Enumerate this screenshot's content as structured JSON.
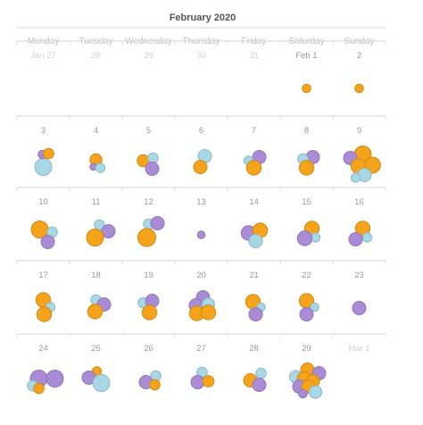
{
  "chart_data": {
    "type": "bubble-calendar",
    "title": "February 2020",
    "weekdays": [
      "Monday",
      "Tuesday",
      "Wednesday",
      "Thursday",
      "Friday",
      "Saturday",
      "Sunday"
    ],
    "colors": {
      "orange": "#F5A31A",
      "purple": "#A98BD6",
      "blue": "#A8D8E6"
    },
    "weeks": [
      [
        {
          "label": "Jan 27",
          "in_month": false,
          "bubbles": []
        },
        {
          "label": "28",
          "in_month": false,
          "bubbles": []
        },
        {
          "label": "29",
          "in_month": false,
          "bubbles": []
        },
        {
          "label": "30",
          "in_month": false,
          "bubbles": []
        },
        {
          "label": "31",
          "in_month": false,
          "bubbles": []
        },
        {
          "label": "Feb 1",
          "in_month": true,
          "bubbles": [
            {
              "color": "orange",
              "size": 1,
              "dx": 0,
              "dy": 0
            }
          ]
        },
        {
          "label": "2",
          "in_month": true,
          "bubbles": [
            {
              "color": "orange",
              "size": 1,
              "dx": 0,
              "dy": 0
            }
          ]
        }
      ],
      [
        {
          "label": "3",
          "in_month": true,
          "bubbles": [
            {
              "color": "blue",
              "size": 4,
              "dx": 0,
              "dy": 4
            },
            {
              "color": "purple",
              "size": 1,
              "dx": -1,
              "dy": -10
            },
            {
              "color": "orange",
              "size": 1.5,
              "dx": 6,
              "dy": -11
            }
          ]
        },
        {
          "label": "4",
          "in_month": true,
          "bubbles": [
            {
              "color": "orange",
              "size": 2,
              "dx": 0,
              "dy": -4
            },
            {
              "color": "purple",
              "size": 0.6,
              "dx": -3,
              "dy": 4
            },
            {
              "color": "blue",
              "size": 1.2,
              "dx": 5,
              "dy": 5
            }
          ]
        },
        {
          "label": "5",
          "in_month": true,
          "bubbles": [
            {
              "color": "orange",
              "size": 2,
              "dx": -6,
              "dy": -3
            },
            {
              "color": "blue",
              "size": 1.5,
              "dx": 5,
              "dy": -6
            },
            {
              "color": "purple",
              "size": 2.5,
              "dx": 4,
              "dy": 6
            }
          ]
        },
        {
          "label": "6",
          "in_month": true,
          "bubbles": [
            {
              "color": "blue",
              "size": 2.5,
              "dx": 4,
              "dy": -8
            },
            {
              "color": "orange",
              "size": 2.5,
              "dx": -1,
              "dy": 4
            }
          ]
        },
        {
          "label": "7",
          "in_month": true,
          "bubbles": [
            {
              "color": "purple",
              "size": 2.5,
              "dx": 6,
              "dy": -7
            },
            {
              "color": "blue",
              "size": 1.2,
              "dx": -6,
              "dy": -3
            },
            {
              "color": "orange",
              "size": 3,
              "dx": 0,
              "dy": 5
            }
          ]
        },
        {
          "label": "8",
          "in_month": true,
          "bubbles": [
            {
              "color": "purple",
              "size": 2.5,
              "dx": 7,
              "dy": -7
            },
            {
              "color": "blue",
              "size": 1.5,
              "dx": -4,
              "dy": -5
            },
            {
              "color": "orange",
              "size": 3,
              "dx": 0,
              "dy": 5
            }
          ]
        },
        {
          "label": "9",
          "in_month": true,
          "bubbles": [
            {
              "color": "orange",
              "size": 4,
              "dx": 4,
              "dy": -10
            },
            {
              "color": "purple",
              "size": 2.5,
              "dx": -10,
              "dy": -6
            },
            {
              "color": "orange",
              "size": 3.5,
              "dx": 15,
              "dy": 2
            },
            {
              "color": "orange",
              "size": 3,
              "dx": -1,
              "dy": 3
            },
            {
              "color": "blue",
              "size": 2.5,
              "dx": 6,
              "dy": 13
            },
            {
              "color": "blue",
              "size": 1.2,
              "dx": -4,
              "dy": 16
            }
          ]
        }
      ],
      [
        {
          "label": "10",
          "in_month": true,
          "bubbles": [
            {
              "color": "orange",
              "size": 4,
              "dx": -4,
              "dy": -6
            },
            {
              "color": "blue",
              "size": 1.5,
              "dx": 10,
              "dy": -3
            },
            {
              "color": "purple",
              "size": 2.5,
              "dx": 5,
              "dy": 8
            }
          ]
        },
        {
          "label": "11",
          "in_month": true,
          "bubbles": [
            {
              "color": "blue",
              "size": 1.5,
              "dx": 4,
              "dy": -11
            },
            {
              "color": "purple",
              "size": 2.5,
              "dx": 14,
              "dy": -4
            },
            {
              "color": "orange",
              "size": 4,
              "dx": -1,
              "dy": 3
            }
          ]
        },
        {
          "label": "12",
          "in_month": true,
          "bubbles": [
            {
              "color": "blue",
              "size": 1.5,
              "dx": 0,
              "dy": -12
            },
            {
              "color": "purple",
              "size": 2.5,
              "dx": 10,
              "dy": -13
            },
            {
              "color": "orange",
              "size": 4.5,
              "dx": -2,
              "dy": 3
            }
          ]
        },
        {
          "label": "13",
          "in_month": true,
          "bubbles": [
            {
              "color": "purple",
              "size": 0.8,
              "dx": 0,
              "dy": 0
            }
          ]
        },
        {
          "label": "14",
          "in_month": true,
          "bubbles": [
            {
              "color": "purple",
              "size": 3,
              "dx": -6,
              "dy": -2
            },
            {
              "color": "orange",
              "size": 3,
              "dx": 7,
              "dy": -5
            },
            {
              "color": "blue",
              "size": 2.5,
              "dx": 2,
              "dy": 7
            }
          ]
        },
        {
          "label": "15",
          "in_month": true,
          "bubbles": [
            {
              "color": "orange",
              "size": 3,
              "dx": 6,
              "dy": -7
            },
            {
              "color": "blue",
              "size": 1.2,
              "dx": 10,
              "dy": 3
            },
            {
              "color": "purple",
              "size": 3,
              "dx": -2,
              "dy": 4
            }
          ]
        },
        {
          "label": "16",
          "in_month": true,
          "bubbles": [
            {
              "color": "orange",
              "size": 3,
              "dx": 4,
              "dy": -7
            },
            {
              "color": "blue",
              "size": 1.2,
              "dx": 9,
              "dy": 3
            },
            {
              "color": "purple",
              "size": 2.5,
              "dx": -4,
              "dy": 5
            }
          ]
        }
      ],
      [
        {
          "label": "17",
          "in_month": true,
          "bubbles": [
            {
              "color": "orange",
              "size": 3,
              "dx": 0,
              "dy": -9
            },
            {
              "color": "blue",
              "size": 1.2,
              "dx": 8,
              "dy": -1
            },
            {
              "color": "orange",
              "size": 3,
              "dx": 1,
              "dy": 7
            }
          ]
        },
        {
          "label": "18",
          "in_month": true,
          "bubbles": [
            {
              "color": "blue",
              "size": 1.5,
              "dx": 0,
              "dy": -9
            },
            {
              "color": "purple",
              "size": 2.5,
              "dx": 9,
              "dy": -4
            },
            {
              "color": "orange",
              "size": 3,
              "dx": -1,
              "dy": 4
            }
          ]
        },
        {
          "label": "19",
          "in_month": true,
          "bubbles": [
            {
              "color": "blue",
              "size": 1.5,
              "dx": -6,
              "dy": -6
            },
            {
              "color": "purple",
              "size": 2.5,
              "dx": 4,
              "dy": -8
            },
            {
              "color": "orange",
              "size": 3,
              "dx": 1,
              "dy": 5
            }
          ]
        },
        {
          "label": "20",
          "in_month": true,
          "bubbles": [
            {
              "color": "purple",
              "size": 2.5,
              "dx": 2,
              "dy": -12
            },
            {
              "color": "purple",
              "size": 2.5,
              "dx": -6,
              "dy": -3
            },
            {
              "color": "blue",
              "size": 2.2,
              "dx": 8,
              "dy": -4
            },
            {
              "color": "orange",
              "size": 3,
              "dx": -5,
              "dy": 6
            },
            {
              "color": "orange",
              "size": 3,
              "dx": 8,
              "dy": 5
            }
          ]
        },
        {
          "label": "21",
          "in_month": true,
          "bubbles": [
            {
              "color": "orange",
              "size": 3,
              "dx": -1,
              "dy": -7
            },
            {
              "color": "blue",
              "size": 1,
              "dx": 8,
              "dy": -1
            },
            {
              "color": "purple",
              "size": 2.5,
              "dx": 2,
              "dy": 7
            }
          ]
        },
        {
          "label": "22",
          "in_month": true,
          "bubbles": [
            {
              "color": "orange",
              "size": 3,
              "dx": 0,
              "dy": -8
            },
            {
              "color": "blue",
              "size": 1,
              "dx": 9,
              "dy": -1
            },
            {
              "color": "purple",
              "size": 2.5,
              "dx": 0,
              "dy": 7
            }
          ]
        },
        {
          "label": "23",
          "in_month": true,
          "bubbles": [
            {
              "color": "purple",
              "size": 2.5,
              "dx": 0,
              "dy": 0
            }
          ]
        }
      ],
      [
        {
          "label": "24",
          "in_month": true,
          "bubbles": [
            {
              "color": "purple",
              "size": 4,
              "dx": -5,
              "dy": -3
            },
            {
              "color": "purple",
              "size": 4,
              "dx": 13,
              "dy": -3
            },
            {
              "color": "blue",
              "size": 1.5,
              "dx": -12,
              "dy": 5
            },
            {
              "color": "orange",
              "size": 1.5,
              "dx": -5,
              "dy": 8
            }
          ]
        },
        {
          "label": "25",
          "in_month": true,
          "bubbles": [
            {
              "color": "orange",
              "size": 1.2,
              "dx": 1,
              "dy": -11
            },
            {
              "color": "purple",
              "size": 2.5,
              "dx": -8,
              "dy": -4
            },
            {
              "color": "blue",
              "size": 4,
              "dx": 6,
              "dy": 2
            }
          ]
        },
        {
          "label": "26",
          "in_month": true,
          "bubbles": [
            {
              "color": "blue",
              "size": 1.5,
              "dx": 8,
              "dy": -6
            },
            {
              "color": "purple",
              "size": 2.5,
              "dx": -3,
              "dy": 1
            },
            {
              "color": "orange",
              "size": 1.5,
              "dx": 7,
              "dy": 4
            }
          ]
        },
        {
          "label": "27",
          "in_month": true,
          "bubbles": [
            {
              "color": "blue",
              "size": 1.5,
              "dx": 1,
              "dy": -10
            },
            {
              "color": "purple",
              "size": 2.5,
              "dx": -4,
              "dy": 1
            },
            {
              "color": "orange",
              "size": 1.8,
              "dx": 8,
              "dy": 0
            }
          ]
        },
        {
          "label": "28",
          "in_month": true,
          "bubbles": [
            {
              "color": "blue",
              "size": 1.5,
              "dx": 8,
              "dy": -9
            },
            {
              "color": "orange",
              "size": 2.5,
              "dx": -4,
              "dy": -1
            },
            {
              "color": "purple",
              "size": 2.5,
              "dx": 6,
              "dy": 4
            }
          ]
        },
        {
          "label": "29",
          "in_month": true,
          "bubbles": [
            {
              "color": "orange",
              "size": 2.5,
              "dx": 1,
              "dy": -13
            },
            {
              "color": "purple",
              "size": 2.5,
              "dx": 14,
              "dy": -9
            },
            {
              "color": "blue",
              "size": 2.2,
              "dx": -12,
              "dy": -5
            },
            {
              "color": "orange",
              "size": 2.5,
              "dx": -3,
              "dy": -3
            },
            {
              "color": "orange",
              "size": 2.5,
              "dx": 7,
              "dy": 0
            },
            {
              "color": "purple",
              "size": 2.5,
              "dx": -8,
              "dy": 6
            },
            {
              "color": "orange",
              "size": 2.5,
              "dx": 2,
              "dy": 6
            },
            {
              "color": "blue",
              "size": 2.2,
              "dx": 10,
              "dy": 12
            },
            {
              "color": "purple",
              "size": 1,
              "dx": -4,
              "dy": 14
            }
          ]
        },
        {
          "label": "Mar 1",
          "in_month": false,
          "bubbles": []
        }
      ]
    ]
  }
}
